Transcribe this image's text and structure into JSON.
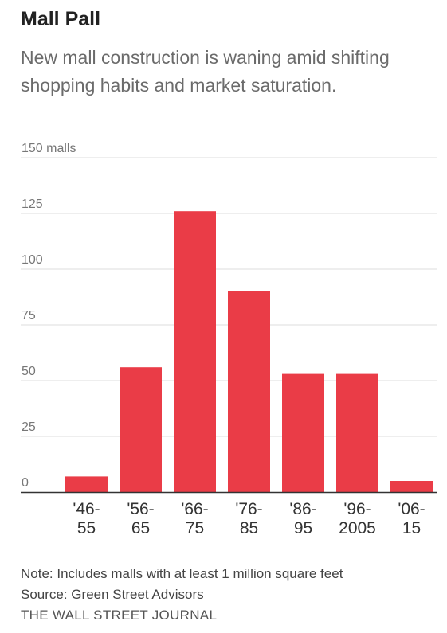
{
  "chart_data": {
    "type": "bar",
    "title": "Mall Pall",
    "subtitle": "New mall construction is waning amid shifting shopping habits and market saturation.",
    "categories": [
      "'46-55",
      "'56-65",
      "'66-75",
      "'76-85",
      "'86-95",
      "'96-2005",
      "'06-15"
    ],
    "category_lines": [
      [
        "'46-",
        "55"
      ],
      [
        "'56-",
        "65"
      ],
      [
        "'66-",
        "75"
      ],
      [
        "'76-",
        "85"
      ],
      [
        "'86-",
        "95"
      ],
      [
        "'96-",
        "2005"
      ],
      [
        "'06-",
        "15"
      ]
    ],
    "values": [
      7,
      56,
      126,
      90,
      53,
      53,
      5
    ],
    "ylim": [
      0,
      150
    ],
    "yticks": [
      0,
      25,
      50,
      75,
      100,
      125,
      150
    ],
    "ytick_labels": [
      "0",
      "25",
      "50",
      "75",
      "100",
      "125",
      "150 malls"
    ],
    "xlabel": "",
    "ylabel": "",
    "grid": true,
    "bar_color": "#ea3c47"
  },
  "footer": {
    "note": "Note: Includes malls with at least 1 million square feet",
    "source": "Source: Green Street Advisors",
    "credit": "THE WALL STREET JOURNAL"
  }
}
